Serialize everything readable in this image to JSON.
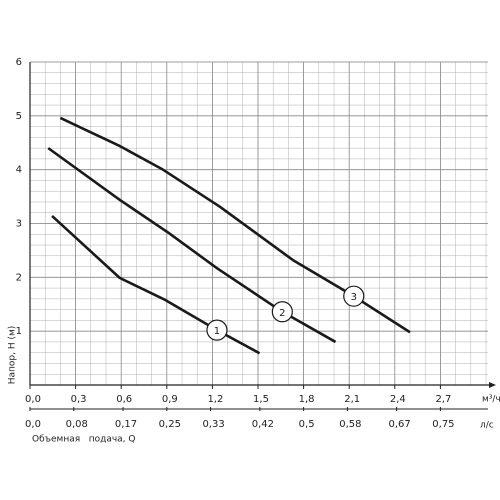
{
  "chart_data": {
    "type": "line",
    "y_label": "Напор, Н (м)",
    "x_unit": "м³/ч",
    "x2_unit": "л/с",
    "x_title": "Объемная   подача, Q",
    "xlim": [
      0,
      3.0
    ],
    "x2lim": [
      0,
      0.8333
    ],
    "ylim": [
      0,
      6
    ],
    "xticks": [
      {
        "value": 0,
        "label": "0,0"
      },
      {
        "value": 0.3,
        "label": "0,3"
      },
      {
        "value": 0.6,
        "label": "0,6"
      },
      {
        "value": 0.9,
        "label": "0,9"
      },
      {
        "value": 1.2,
        "label": "1,2"
      },
      {
        "value": 1.5,
        "label": "1,5"
      },
      {
        "value": 1.8,
        "label": "1,8"
      },
      {
        "value": 2.1,
        "label": "2,1"
      },
      {
        "value": 2.4,
        "label": "2,4"
      },
      {
        "value": 2.7,
        "label": "2,7"
      }
    ],
    "x2ticks": [
      {
        "value": 0,
        "label": "0,0"
      },
      {
        "value": 0.08,
        "label": "0,08"
      },
      {
        "value": 0.17,
        "label": "0,17"
      },
      {
        "value": 0.25,
        "label": "0,25"
      },
      {
        "value": 0.33,
        "label": "0,33"
      },
      {
        "value": 0.42,
        "label": "0,42"
      },
      {
        "value": 0.5,
        "label": "0,5"
      },
      {
        "value": 0.58,
        "label": "0,58"
      },
      {
        "value": 0.67,
        "label": "0,67"
      },
      {
        "value": 0.75,
        "label": "0,75"
      }
    ],
    "yticks": [
      1,
      2,
      3,
      4,
      5,
      6
    ],
    "grid": true,
    "series": [
      {
        "name": "1",
        "color": "#1a1a1a",
        "x": [
          0.145,
          0.59,
          0.89,
          1.23,
          1.51
        ],
        "values": [
          3.14,
          1.99,
          1.58,
          1.02,
          0.59
        ]
      },
      {
        "name": "2",
        "color": "#1a1a1a",
        "x": [
          0.12,
          0.59,
          0.91,
          1.23,
          1.66,
          2.01
        ],
        "values": [
          4.4,
          3.44,
          2.83,
          2.17,
          1.36,
          0.8
        ]
      },
      {
        "name": "3",
        "color": "#1a1a1a",
        "x": [
          0.2,
          0.59,
          0.875,
          1.25,
          1.73,
          2.13,
          2.5
        ],
        "values": [
          4.96,
          4.44,
          4.0,
          3.31,
          2.32,
          1.65,
          0.98
        ]
      }
    ]
  }
}
